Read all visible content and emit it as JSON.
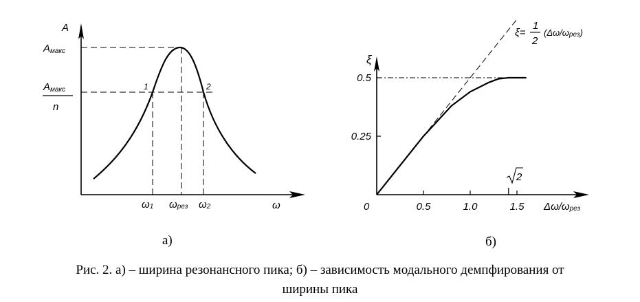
{
  "chart_a": {
    "y_axis_label": "A",
    "x_axis_label": "ω",
    "a_max_label_main": "A",
    "a_max_label_sub": "макс",
    "a_max_over_n_label_main": "A",
    "a_max_over_n_label_sub": "макс",
    "a_max_over_n_denominator": "n",
    "point_1_label": "1",
    "point_2_label": "2",
    "omega1_main": "ω",
    "omega1_sub": "1",
    "omega_res_main": "ω",
    "omega_res_sub": "рез",
    "omega2_main": "ω",
    "omega2_sub": "2",
    "sublabel": "а)"
  },
  "chart_b": {
    "y_axis_label": "ξ",
    "x_axis_label_prefix": "Δω/ω",
    "x_axis_label_sub": "рез",
    "origin_label": "0",
    "y_ticks": [
      "0.25",
      "0.5"
    ],
    "x_ticks": [
      "0.5",
      "1.0",
      "1.5"
    ],
    "sqrt2_label": "2",
    "formula_lhs": "ξ=",
    "formula_num": "1",
    "formula_den": "2",
    "formula_rhs_main": "(Δω/ω",
    "formula_rhs_sub": "рез",
    "formula_rhs_close": ")",
    "sublabel": "б)"
  },
  "caption": {
    "line1": "Рис. 2.  а) – ширина резонансного пика; б) – зависимость модального демпфирования от",
    "line2": "ширины пика"
  },
  "chart_data": [
    {
      "type": "line",
      "title": "",
      "xlabel": "ω",
      "ylabel": "A",
      "series": [
        {
          "x": [
            0.0,
            0.2,
            0.4,
            0.6,
            0.8,
            0.9,
            1.0,
            1.1,
            1.2,
            1.4,
            1.6,
            1.8,
            2.0
          ],
          "y": [
            0.12,
            0.2,
            0.33,
            0.55,
            0.86,
            0.97,
            1.0,
            0.97,
            0.86,
            0.55,
            0.33,
            0.2,
            0.12
          ]
        }
      ],
      "annotations": [
        "A макс",
        "A макс / n",
        "1",
        "2",
        "ω1",
        "ωрез",
        "ω2"
      ]
    },
    {
      "type": "line",
      "title": "",
      "xlabel": "Δω/ωрез",
      "ylabel": "ξ",
      "xlim": [
        0,
        1.7
      ],
      "ylim": [
        0,
        0.6
      ],
      "x_ticks": [
        0.5,
        1.0,
        1.5
      ],
      "y_ticks": [
        0.25,
        0.5
      ],
      "series": [
        {
          "x": [
            0,
            0.5,
            0.8,
            1.0,
            1.2,
            1.3,
            1.41,
            1.6
          ],
          "y": [
            0,
            0.25,
            0.38,
            0.44,
            0.48,
            0.495,
            0.5,
            0.5
          ]
        }
      ],
      "reference_line": {
        "formula": "ξ = 1/2 (Δω/ωрез)",
        "x": [
          0,
          1.5
        ],
        "y": [
          0,
          0.75
        ]
      },
      "annotations": [
        "√2"
      ]
    }
  ]
}
